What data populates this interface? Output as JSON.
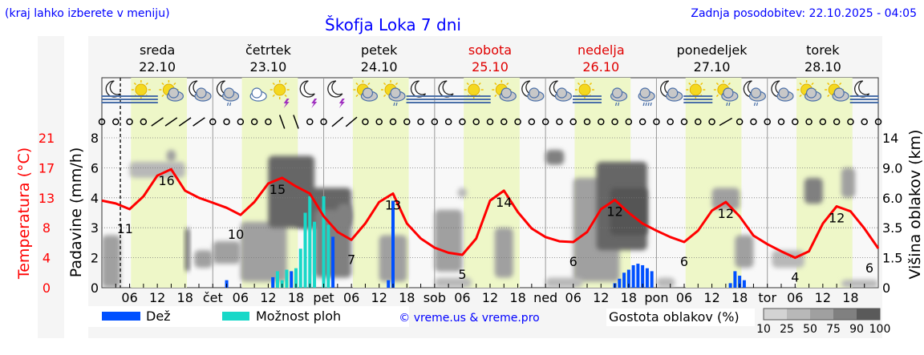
{
  "header": {
    "menu_hint": "(kraj lahko izberete v meniju)",
    "title": "Škofja Loka 7 dni",
    "last_update": "Zadnja posodobitev: 22.10.2025 - 04:05"
  },
  "days": [
    {
      "name": "sreda",
      "date": "22.10",
      "weekend": false
    },
    {
      "name": "četrtek",
      "date": "23.10",
      "weekend": false
    },
    {
      "name": "petek",
      "date": "24.10",
      "weekend": false
    },
    {
      "name": "sobota",
      "date": "25.10",
      "weekend": true
    },
    {
      "name": "nedelja",
      "date": "26.10",
      "weekend": true
    },
    {
      "name": "ponedeljek",
      "date": "27.10",
      "weekend": false
    },
    {
      "name": "torek",
      "date": "28.10",
      "weekend": false
    }
  ],
  "colors": {
    "title": "#0000ff",
    "weekend": "#e00000",
    "temperature": "#ff0000",
    "rain": "#0050ff",
    "showers": "#18d8c8",
    "daylight": "#eef7c8",
    "night": "#f8f8f8"
  },
  "chart_data": {
    "type": "line",
    "title": "Škofja Loka 7 dni",
    "x_hours": "hours since Wed 22.10 00:00",
    "now_hour": 4,
    "x_tick_labels": [
      "06",
      "12",
      "18",
      "čet",
      "06",
      "12",
      "18",
      "pet",
      "06",
      "12",
      "18",
      "sob",
      "06",
      "12",
      "18",
      "ned",
      "06",
      "12",
      "18",
      "pon",
      "06",
      "12",
      "18",
      "tor",
      "06",
      "12",
      "18"
    ],
    "y_left_temperature": {
      "label": "Temperatura (°C)",
      "ticks": [
        "21",
        "17",
        "13",
        "8",
        "4",
        "0"
      ],
      "range": [
        0,
        21
      ]
    },
    "y_left_precip": {
      "label": "Padavine (mm/h)",
      "ticks": [
        "8",
        "6",
        "4",
        "3",
        "2",
        "0"
      ]
    },
    "y_right_cloud": {
      "label": "Višina oblakov (km)",
      "ticks": [
        "14",
        "9.0",
        "6.0",
        "3.5",
        "1.5",
        "0"
      ]
    },
    "temperature": {
      "step_hours": 3,
      "values": [
        12.2,
        11.8,
        11.0,
        12.8,
        15.7,
        16.6,
        13.6,
        12.6,
        11.9,
        11.2,
        10.2,
        12.0,
        14.6,
        15.4,
        14.2,
        13.2,
        10.0,
        7.8,
        6.7,
        9.0,
        12.0,
        13.2,
        9.0,
        6.9,
        5.6,
        4.9,
        4.6,
        6.9,
        12.2,
        13.6,
        10.6,
        8.3,
        7.1,
        6.5,
        6.4,
        7.8,
        11.0,
        12.3,
        10.5,
        9.0,
        8.0,
        7.1,
        6.4,
        8.0,
        10.8,
        12.0,
        10.0,
        7.3,
        6.1,
        5.1,
        4.2,
        5.1,
        9.0,
        11.4,
        10.7,
        8.3,
        5.5
      ]
    },
    "temperature_labels": [
      {
        "hour": 5,
        "text": "11"
      },
      {
        "hour": 14,
        "text": "16"
      },
      {
        "hour": 29,
        "text": "10"
      },
      {
        "hour": 38,
        "text": "15"
      },
      {
        "hour": 54,
        "text": "7"
      },
      {
        "hour": 63,
        "text": "13"
      },
      {
        "hour": 78,
        "text": "5"
      },
      {
        "hour": 87,
        "text": "14"
      },
      {
        "hour": 102,
        "text": "6"
      },
      {
        "hour": 111,
        "text": "12"
      },
      {
        "hour": 126,
        "text": "6"
      },
      {
        "hour": 135,
        "text": "12"
      },
      {
        "hour": 150,
        "text": "4"
      },
      {
        "hour": 159,
        "text": "12"
      },
      {
        "hour": 167.5,
        "text": "6"
      }
    ],
    "precipitation": [
      {
        "hour": 27,
        "mm": 0.5,
        "type": "rain"
      },
      {
        "hour": 37,
        "mm": 0.7,
        "type": "rain"
      },
      {
        "hour": 38,
        "mm": 1.1,
        "type": "showers"
      },
      {
        "hour": 39,
        "mm": 0.5,
        "type": "showers"
      },
      {
        "hour": 40,
        "mm": 1.2,
        "type": "showers"
      },
      {
        "hour": 41,
        "mm": 1.1,
        "type": "rain"
      },
      {
        "hour": 42,
        "mm": 1.3,
        "type": "showers"
      },
      {
        "hour": 43,
        "mm": 2.3,
        "type": "showers"
      },
      {
        "hour": 44,
        "mm": 3.5,
        "type": "showers"
      },
      {
        "hour": 45,
        "mm": 4.1,
        "type": "showers"
      },
      {
        "hour": 46,
        "mm": 3.2,
        "type": "showers"
      },
      {
        "hour": 48,
        "mm": 4.1,
        "type": "showers"
      },
      {
        "hour": 49,
        "mm": 3.1,
        "type": "showers"
      },
      {
        "hour": 50,
        "mm": 2.7,
        "type": "rain"
      },
      {
        "hour": 62,
        "mm": 0.5,
        "type": "rain"
      },
      {
        "hour": 63,
        "mm": 3.9,
        "type": "rain"
      },
      {
        "hour": 111,
        "mm": 0.3,
        "type": "rain"
      },
      {
        "hour": 112,
        "mm": 0.6,
        "type": "rain"
      },
      {
        "hour": 113,
        "mm": 1.0,
        "type": "rain"
      },
      {
        "hour": 114,
        "mm": 1.2,
        "type": "rain"
      },
      {
        "hour": 115,
        "mm": 1.5,
        "type": "rain"
      },
      {
        "hour": 116,
        "mm": 1.6,
        "type": "rain"
      },
      {
        "hour": 117,
        "mm": 1.5,
        "type": "rain"
      },
      {
        "hour": 118,
        "mm": 1.3,
        "type": "rain"
      },
      {
        "hour": 119,
        "mm": 1.1,
        "type": "rain"
      },
      {
        "hour": 136,
        "mm": 0.3,
        "type": "rain"
      },
      {
        "hour": 137,
        "mm": 1.1,
        "type": "rain"
      },
      {
        "hour": 138,
        "mm": 0.8,
        "type": "rain"
      },
      {
        "hour": 139,
        "mm": 0.5,
        "type": "rain"
      }
    ],
    "cloud_density": [
      [
        0,
        4,
        0,
        3,
        50
      ],
      [
        20,
        24,
        1,
        2,
        60
      ],
      [
        6,
        18,
        8,
        10,
        40
      ],
      [
        14,
        16,
        10,
        12,
        60
      ],
      [
        18,
        19,
        0.8,
        3.5,
        90
      ],
      [
        24,
        30,
        1.2,
        2.6,
        50
      ],
      [
        30,
        40,
        0.3,
        4,
        60
      ],
      [
        36,
        46,
        3.5,
        11,
        90
      ],
      [
        42,
        54,
        3.5,
        7,
        90
      ],
      [
        46,
        54,
        0.5,
        5,
        75
      ],
      [
        60,
        66,
        0.3,
        3,
        50
      ],
      [
        51,
        54,
        4,
        5.5,
        75
      ],
      [
        72,
        78,
        0.8,
        5,
        60
      ],
      [
        85,
        89,
        0.5,
        3.5,
        50
      ],
      [
        72,
        80,
        0,
        0.5,
        30
      ],
      [
        77,
        79,
        6,
        7,
        40
      ],
      [
        96,
        100,
        9.5,
        12,
        80
      ],
      [
        102,
        112,
        0.3,
        8,
        50
      ],
      [
        107,
        118,
        2,
        10,
        90
      ],
      [
        110,
        118,
        3,
        7,
        95
      ],
      [
        96,
        104,
        0,
        0.5,
        30
      ],
      [
        132,
        138,
        5,
        7,
        50
      ],
      [
        137,
        141,
        1,
        3,
        50
      ],
      [
        120,
        124,
        0,
        0.5,
        30
      ],
      [
        152,
        156,
        5.5,
        8,
        80
      ],
      [
        145,
        152,
        1,
        2,
        40
      ],
      [
        160,
        163,
        6,
        9,
        50
      ],
      [
        160,
        168,
        0,
        0.4,
        40
      ]
    ],
    "weather_icons": [
      "moon-fog",
      "sun-fog",
      "sun-cloud",
      "moon-cloud",
      "moon-cloud-rain",
      "cloud",
      "sun-storm",
      "moon-storm",
      "moon-storm",
      "sun-cloud",
      "sun-cloud-rain",
      "moon-fog",
      "moon-fog",
      "sun-fog",
      "sun-cloud",
      "moon-cloud",
      "moon-cloud",
      "sun-fog",
      "cloud-rain",
      "cloud-heavy-rain",
      "moon-cloud",
      "sun-fog",
      "sun-cloud-rain",
      "moon-cloud-rain",
      "moon-cloud",
      "sun-cloud",
      "sun-cloud",
      "moon-fog"
    ],
    "wind": {
      "step_hours": 3,
      "barbs": [
        0,
        0,
        0,
        0,
        35,
        35,
        35,
        35,
        0,
        0,
        0,
        0,
        0,
        -70,
        -70,
        0,
        0,
        40,
        40,
        0,
        0,
        0,
        0,
        0,
        0,
        0,
        0,
        0,
        0,
        0,
        0,
        0,
        0,
        0,
        0,
        0,
        0,
        0,
        0,
        0,
        0,
        0,
        0,
        0,
        0,
        30,
        0,
        0,
        0,
        0,
        0,
        0,
        0,
        0,
        0,
        0,
        0
      ],
      "calm_symbol": "circle"
    },
    "legend": {
      "rain": "Dež",
      "showers": "Možnost ploh",
      "credit": "© vreme.us & vreme.pro",
      "cloud_title": "Gostota oblakov (%)",
      "cloud_levels": [
        "10",
        "25",
        "50",
        "75",
        "90",
        "100"
      ]
    }
  }
}
